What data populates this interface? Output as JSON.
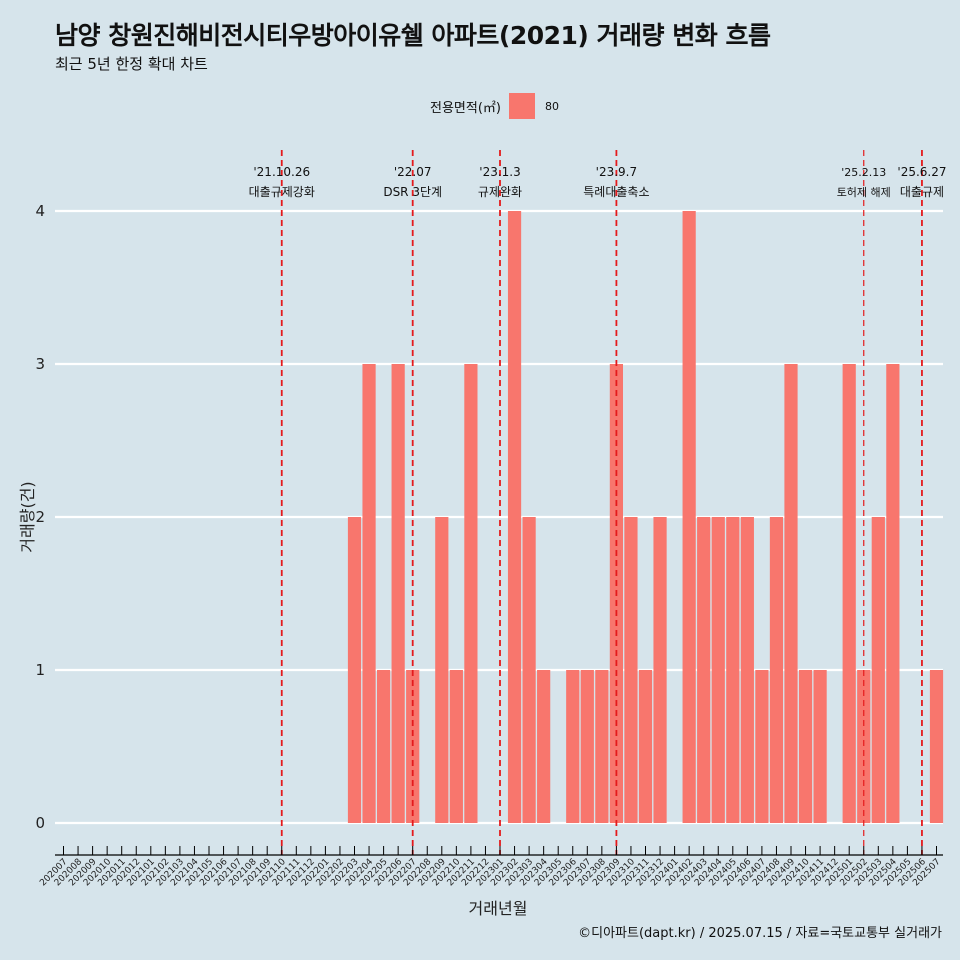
{
  "title": "남양 창원진해비전시티우방아이유쉘 아파트(2021) 거래량 변화 흐름",
  "subtitle": "최근 5년 한정 확대 차트",
  "legend": {
    "title": "전용면적(㎡)",
    "items": [
      {
        "label": "80",
        "color": "#f8766d"
      }
    ]
  },
  "caption": "©디아파트(dapt.kr) / 2025.07.15 / 자료=국토교통부 실거래가",
  "chart_data": {
    "type": "bar",
    "xlabel": "거래년월",
    "ylabel": "거래량(건)",
    "ylim": [
      0,
      4
    ],
    "y_ticks": [
      0,
      1,
      2,
      3,
      4
    ],
    "grid": "horizontal major lines",
    "legend_position": "top",
    "categories": [
      "202007",
      "202008",
      "202009",
      "202010",
      "202011",
      "202012",
      "202101",
      "202102",
      "202103",
      "202104",
      "202105",
      "202106",
      "202107",
      "202108",
      "202109",
      "202110",
      "202111",
      "202112",
      "202201",
      "202202",
      "202203",
      "202204",
      "202205",
      "202206",
      "202207",
      "202208",
      "202209",
      "202210",
      "202211",
      "202212",
      "202301",
      "202302",
      "202303",
      "202304",
      "202305",
      "202306",
      "202307",
      "202308",
      "202309",
      "202310",
      "202311",
      "202312",
      "202401",
      "202402",
      "202403",
      "202404",
      "202405",
      "202406",
      "202407",
      "202408",
      "202409",
      "202410",
      "202411",
      "202412",
      "202501",
      "202502",
      "202503",
      "202504",
      "202505",
      "202506",
      "202507"
    ],
    "series": [
      {
        "name": "80",
        "color": "#f8766d",
        "values": [
          null,
          null,
          null,
          null,
          null,
          null,
          null,
          null,
          null,
          null,
          null,
          null,
          null,
          null,
          null,
          null,
          null,
          null,
          null,
          null,
          2,
          3,
          1,
          3,
          1,
          0,
          2,
          1,
          3,
          null,
          0,
          4,
          2,
          1,
          0,
          1,
          1,
          1,
          3,
          2,
          1,
          2,
          0,
          4,
          2,
          2,
          2,
          2,
          1,
          2,
          3,
          1,
          1,
          0,
          3,
          1,
          2,
          3,
          null,
          0,
          1
        ]
      }
    ],
    "events": [
      {
        "date": "'21.10.26",
        "label": "대출규제강화",
        "x": "202110"
      },
      {
        "date": "'22.07",
        "label": "DSR 3단계",
        "x": "202207"
      },
      {
        "date": "'23.1.3",
        "label": "규제완화",
        "x": "202301"
      },
      {
        "date": "'23.9.7",
        "label": "특례대출축소",
        "x": "202309"
      },
      {
        "date": "'25.2.13",
        "label": "토허제 해제",
        "x": "202502"
      },
      {
        "date": "'25.6.27",
        "label": "대출규제",
        "x": "202506"
      }
    ],
    "event_line_color": "#e41a1c"
  }
}
